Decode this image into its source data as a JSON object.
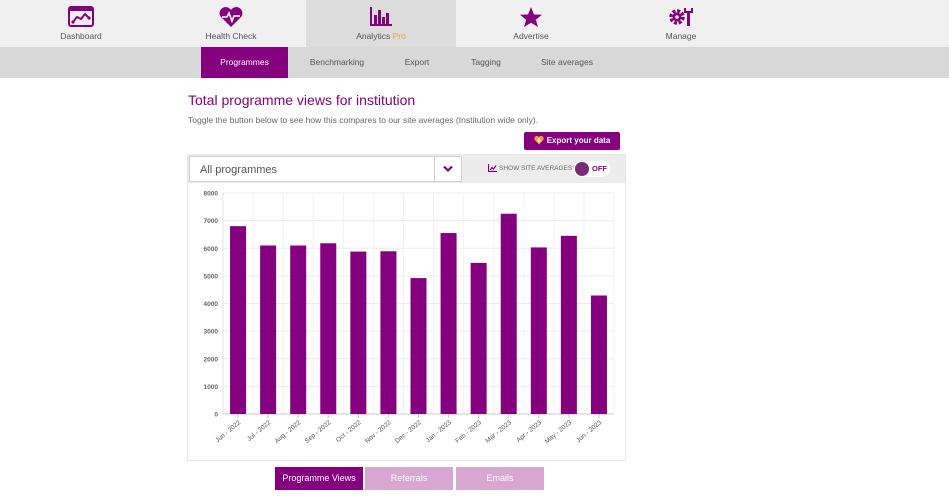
{
  "nav": {
    "items": [
      {
        "label": "Dashboard",
        "icon": "dashboard-chart-icon"
      },
      {
        "label": "Health Check",
        "icon": "heartbeat-icon"
      },
      {
        "label": "Analytics",
        "pro": "Pro",
        "icon": "bar-chart-icon"
      },
      {
        "label": "Advertise",
        "icon": "star-icon"
      },
      {
        "label": "Manage",
        "icon": "gear-wrench-icon"
      }
    ]
  },
  "subnav": {
    "items": [
      "Programmes",
      "Benchmarking",
      "Export",
      "Tagging",
      "Site averages"
    ]
  },
  "page": {
    "title": "Total programme views for institution",
    "description": "Toggle the button below to see how this compares to our site averages (Institution wide only)."
  },
  "export_label": "Export your data",
  "filter": {
    "selected": "All programmes",
    "site_avg_label": "SHOW SITE AVERAGES",
    "toggle_state": "OFF"
  },
  "colors": {
    "accent": "#85007f",
    "accent_light": "#d7a6d1",
    "pro": "#f2a33a"
  },
  "chart_data": {
    "type": "bar",
    "categories": [
      "Jun - 2022",
      "Jul - 2022",
      "Aug - 2022",
      "Sep - 2022",
      "Oct - 2022",
      "Nov - 2022",
      "Dec - 2022",
      "Jan - 2023",
      "Feb - 2023",
      "Mar - 2023",
      "Apr - 2023",
      "May - 2023",
      "Jun - 2023"
    ],
    "values": [
      6800,
      6100,
      6100,
      6180,
      5880,
      5890,
      4920,
      6550,
      5470,
      7250,
      6030,
      6450,
      4290
    ],
    "ylim": [
      0,
      8000
    ],
    "yticks": [
      0,
      1000,
      2000,
      3000,
      4000,
      5000,
      6000,
      7000,
      8000
    ],
    "grid": true,
    "legend": "none"
  },
  "tabs": [
    "Programme Views",
    "Referrals",
    "Emails"
  ]
}
